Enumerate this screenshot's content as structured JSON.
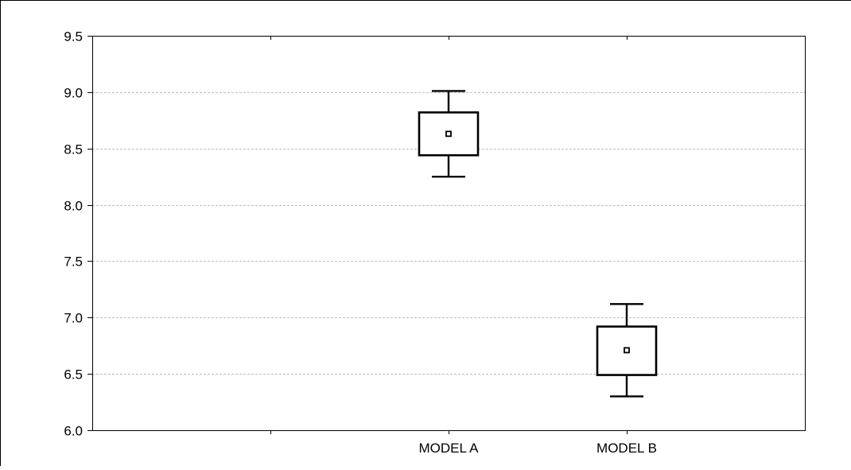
{
  "chart_data": {
    "type": "box",
    "categories": [
      "MODEL A",
      "MODEL B"
    ],
    "series": [
      {
        "values": [
          {
            "category": "MODEL A",
            "whisker_low": 8.25,
            "box_low": 8.44,
            "center": 8.63,
            "box_high": 8.82,
            "whisker_high": 9.01
          },
          {
            "category": "MODEL B",
            "whisker_low": 6.3,
            "box_low": 6.49,
            "center": 6.71,
            "box_high": 6.92,
            "whisker_high": 7.12
          }
        ]
      }
    ],
    "title": "",
    "xlabel": "",
    "ylabel": "",
    "ylim": [
      6.0,
      9.5
    ],
    "yticks": [
      "6.0",
      "6.5",
      "7.0",
      "7.5",
      "8.0",
      "8.5",
      "9.0",
      "9.5"
    ],
    "xlim": [
      -1,
      3
    ],
    "grid": "horizontal-dashed",
    "legend": "none",
    "colors": {
      "background": "#ffffff",
      "frame": "#000000",
      "grid": "#bdbdbd",
      "box": "#000000"
    }
  }
}
